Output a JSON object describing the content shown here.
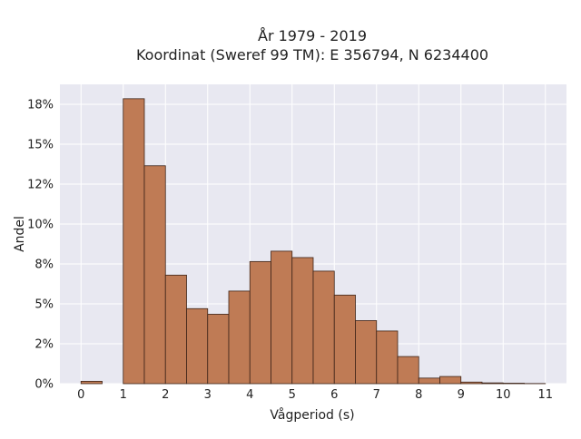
{
  "chart_data": {
    "type": "bar",
    "title_line1": "År 1979 - 2019",
    "title_line2": "Koordinat (Sweref 99 TM): E 356794, N 6234400",
    "xlabel": "Vågperiod (s)",
    "ylabel": "Andel",
    "xlim": [
      -0.5,
      11.5
    ],
    "ylim": [
      0,
      0.1875
    ],
    "x_ticks": [
      0,
      1,
      2,
      3,
      4,
      5,
      6,
      7,
      8,
      9,
      10,
      11
    ],
    "x_tick_labels": [
      "0",
      "1",
      "2",
      "3",
      "4",
      "5",
      "6",
      "7",
      "8",
      "9",
      "10",
      "11"
    ],
    "y_ticks": [
      0,
      0.025,
      0.05,
      0.075,
      0.1,
      0.125,
      0.15,
      0.175
    ],
    "y_tick_labels": [
      "0%",
      "2%",
      "5%",
      "8%",
      "10%",
      "12%",
      "15%",
      "18%"
    ],
    "bin_width": 0.5,
    "bins": [
      {
        "x0": 0.0,
        "value": 0.0015
      },
      {
        "x0": 1.0,
        "value": 0.1785
      },
      {
        "x0": 1.5,
        "value": 0.1365
      },
      {
        "x0": 2.0,
        "value": 0.068
      },
      {
        "x0": 2.5,
        "value": 0.047
      },
      {
        "x0": 3.0,
        "value": 0.0435
      },
      {
        "x0": 3.5,
        "value": 0.058
      },
      {
        "x0": 4.0,
        "value": 0.0765
      },
      {
        "x0": 4.5,
        "value": 0.083
      },
      {
        "x0": 5.0,
        "value": 0.079
      },
      {
        "x0": 5.5,
        "value": 0.0705
      },
      {
        "x0": 6.0,
        "value": 0.0555
      },
      {
        "x0": 6.5,
        "value": 0.0395
      },
      {
        "x0": 7.0,
        "value": 0.033
      },
      {
        "x0": 7.5,
        "value": 0.017
      },
      {
        "x0": 8.0,
        "value": 0.0035
      },
      {
        "x0": 8.5,
        "value": 0.0045
      },
      {
        "x0": 9.0,
        "value": 0.001
      },
      {
        "x0": 9.5,
        "value": 0.0005
      },
      {
        "x0": 10.0,
        "value": 0.0003
      },
      {
        "x0": 10.5,
        "value": 0.0001
      }
    ],
    "grid": true,
    "colors": {
      "bar_fill": "#bf7b55",
      "bar_edge": "#3d2418",
      "plot_bg": "#e8e8f1",
      "grid": "#ffffff"
    }
  }
}
